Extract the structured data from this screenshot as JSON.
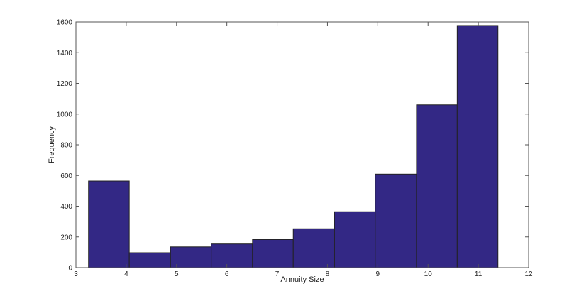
{
  "chart_data": {
    "type": "bar",
    "subtype": "histogram",
    "title": "",
    "xlabel": "Annuity Size",
    "ylabel": "Frequency",
    "xlim": [
      3,
      12
    ],
    "ylim": [
      0,
      1600
    ],
    "xticks": [
      "3",
      "4",
      "5",
      "6",
      "7",
      "8",
      "9",
      "10",
      "11",
      "12"
    ],
    "yticks": [
      "0",
      "200",
      "400",
      "600",
      "800",
      "1000",
      "1200",
      "1400",
      "1600"
    ],
    "bin_edges": [
      3.25,
      4.06,
      4.88,
      5.69,
      6.51,
      7.32,
      8.14,
      8.95,
      9.77,
      10.58,
      11.39
    ],
    "values": [
      564,
      97,
      135,
      154,
      183,
      253,
      364,
      609,
      1060,
      1577
    ],
    "grid": false,
    "bar_color": "#332885",
    "edge_color": "#222222"
  }
}
